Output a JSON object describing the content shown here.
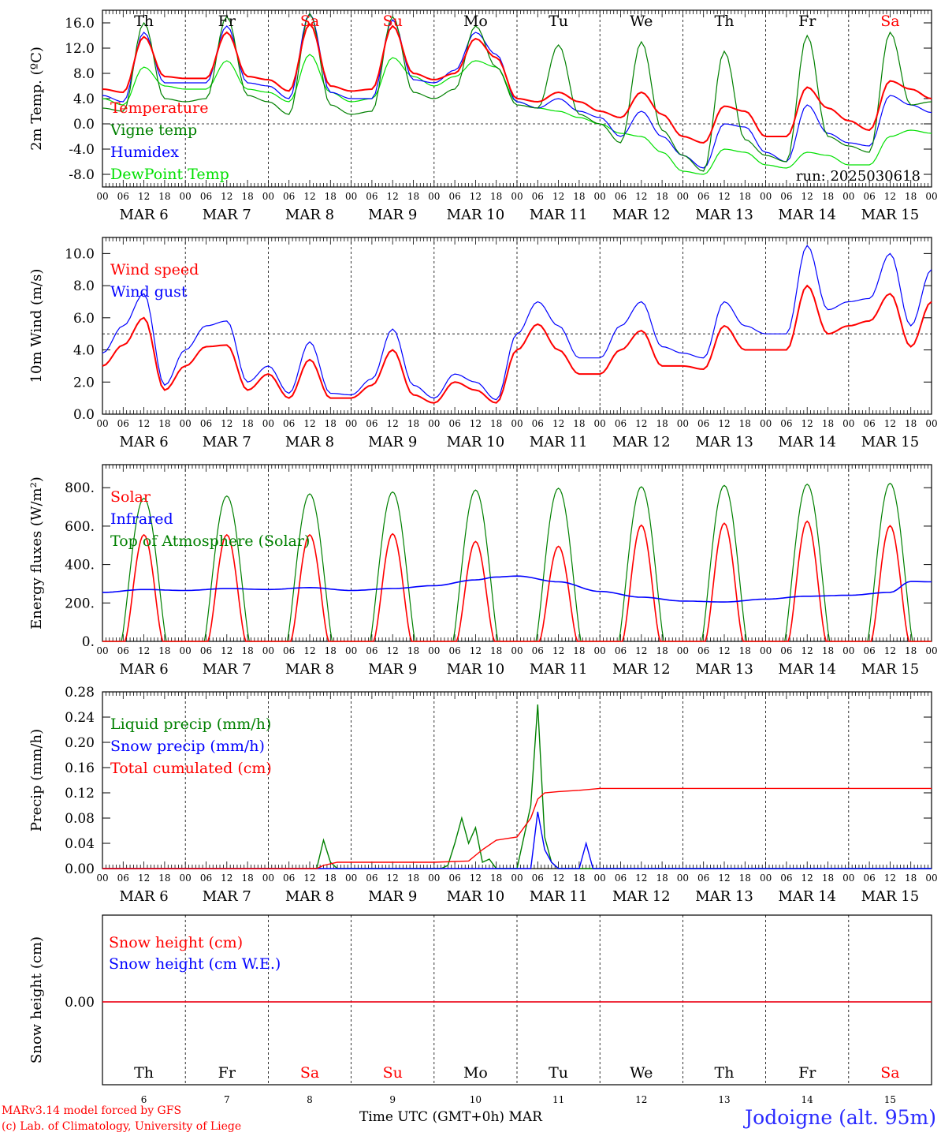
{
  "footer": {
    "model": "MARv3.14 model forced by GFS",
    "lab": "(c) Lab. of Climatology, University of Liege",
    "time_label": "Time UTC (GMT+0h) MAR",
    "station": "Jodoigne (alt. 95m)"
  },
  "colors": {
    "red": "#ff0000",
    "dark_green": "#008000",
    "blue": "#0000ff",
    "light_green": "#00e000",
    "grid": "#000000",
    "weekend": "#ff0000"
  },
  "days": {
    "abbr": [
      "Th",
      "Fr",
      "Sa",
      "Su",
      "Mo",
      "Tu",
      "We",
      "Th",
      "Fr",
      "Sa"
    ],
    "weekend": [
      false,
      false,
      true,
      true,
      false,
      false,
      false,
      false,
      false,
      true
    ],
    "dates": [
      "MAR  6",
      "MAR  7",
      "MAR  8",
      "MAR  9",
      "MAR 10",
      "MAR 11",
      "MAR 12",
      "MAR 13",
      "MAR 14",
      "MAR 15"
    ],
    "numbers": [
      "6",
      "7",
      "8",
      "9",
      "10",
      "11",
      "12",
      "13",
      "14",
      "15"
    ],
    "hour_ticks": [
      "00",
      "06",
      "12",
      "18"
    ],
    "end_tick": "00"
  },
  "chart_data": [
    {
      "type": "line",
      "id": "temp",
      "ylabel": "2m Temp. (ºC)",
      "ylim": [
        -10,
        18
      ],
      "yticks": [
        "16.0",
        "12.0",
        "8.0",
        "4.0",
        "0.0",
        "-4.0",
        "-8.0"
      ],
      "ytick_values": [
        16,
        12,
        8,
        4,
        0,
        -4,
        -8
      ],
      "reference_line": 0,
      "run_label": "run: 2025030618",
      "x": [
        0,
        6,
        12,
        18,
        24,
        30,
        36,
        42,
        48,
        54,
        60,
        66,
        72,
        78,
        84,
        90,
        96,
        102,
        108,
        114,
        120,
        126,
        132,
        138,
        144,
        150,
        156,
        162,
        168,
        174,
        180,
        186,
        192,
        198,
        204,
        210,
        216,
        222,
        228,
        234,
        240
      ],
      "series": [
        {
          "name": "Temperature",
          "color": "#ff0000",
          "values": [
            5.5,
            5.0,
            13.8,
            7.5,
            7.2,
            7.2,
            14.5,
            7.5,
            7.0,
            5.2,
            15.8,
            6.0,
            5.2,
            5.5,
            15.5,
            8.0,
            7.0,
            8.0,
            13.5,
            10.5,
            4.0,
            3.5,
            5.0,
            3.5,
            2.0,
            1.0,
            5.0,
            1.5,
            -2.0,
            -3.0,
            2.8,
            2.0,
            -2.0,
            -2.0,
            5.8,
            2.5,
            0.5,
            -1.0,
            6.8,
            5.5,
            4.0
          ]
        },
        {
          "name": "Vigne temp",
          "color": "#008000",
          "values": [
            2.5,
            2.0,
            16.0,
            4.0,
            3.5,
            4.0,
            17.0,
            4.5,
            3.5,
            1.5,
            17.5,
            3.0,
            1.5,
            2.0,
            17.0,
            5.0,
            4.0,
            5.5,
            15.5,
            9.0,
            3.0,
            2.5,
            12.5,
            1.5,
            0.0,
            -3.0,
            13.0,
            -1.0,
            -5.0,
            -7.5,
            11.5,
            -2.5,
            -5.0,
            -6.0,
            14.0,
            -2.0,
            -3.5,
            -4.5,
            14.5,
            3.0,
            3.5
          ]
        },
        {
          "name": "Humidex",
          "color": "#0000ff",
          "values": [
            4.5,
            3.5,
            14.5,
            6.5,
            6.5,
            6.5,
            15.5,
            6.5,
            6.0,
            4.0,
            17.5,
            5.0,
            4.0,
            4.0,
            16.5,
            7.0,
            6.5,
            8.5,
            14.5,
            11.0,
            3.5,
            2.5,
            4.0,
            2.0,
            1.0,
            -2.0,
            2.0,
            -2.0,
            -5.0,
            -7.0,
            0.0,
            -0.5,
            -4.5,
            -6.0,
            3.0,
            -1.5,
            -3.0,
            -3.5,
            4.5,
            3.0,
            1.8
          ]
        },
        {
          "name": "DewPoint Temp",
          "color": "#00e000",
          "values": [
            4.0,
            3.0,
            9.0,
            6.0,
            5.5,
            5.5,
            10.0,
            5.5,
            5.0,
            3.5,
            11.0,
            5.0,
            3.5,
            4.0,
            10.5,
            7.5,
            6.0,
            7.5,
            10.0,
            9.0,
            3.5,
            2.5,
            2.0,
            1.0,
            0.0,
            -1.5,
            -2.0,
            -4.5,
            -7.5,
            -8.0,
            -4.0,
            -4.5,
            -6.5,
            -7.0,
            -4.5,
            -5.0,
            -6.5,
            -6.5,
            -2.0,
            -1.0,
            -1.5
          ]
        }
      ]
    },
    {
      "type": "line",
      "id": "wind",
      "ylabel": "10m Wind (m/s)",
      "ylim": [
        0,
        11
      ],
      "yticks": [
        "10.0",
        "8.0",
        "6.0",
        "4.0",
        "2.0",
        "0.0"
      ],
      "ytick_values": [
        10,
        8,
        6,
        4,
        2,
        0
      ],
      "reference_line": 5,
      "x": [
        0,
        6,
        12,
        18,
        24,
        30,
        36,
        42,
        48,
        54,
        60,
        66,
        72,
        78,
        84,
        90,
        96,
        102,
        108,
        114,
        120,
        126,
        132,
        138,
        144,
        150,
        156,
        162,
        168,
        174,
        180,
        186,
        192,
        198,
        204,
        210,
        216,
        222,
        228,
        234,
        240
      ],
      "series": [
        {
          "name": "Wind speed",
          "color": "#ff0000",
          "values": [
            3.0,
            4.3,
            6.0,
            1.5,
            3.0,
            4.2,
            4.3,
            1.5,
            2.5,
            1.0,
            3.4,
            1.0,
            1.0,
            1.8,
            4.0,
            1.2,
            0.7,
            2.0,
            1.5,
            0.7,
            4.0,
            5.6,
            4.0,
            2.5,
            2.5,
            4.0,
            5.2,
            3.0,
            3.0,
            2.8,
            5.5,
            4.0,
            4.0,
            4.0,
            8.0,
            5.0,
            5.5,
            5.8,
            7.5,
            4.2,
            7.0
          ]
        },
        {
          "name": "Wind gust",
          "color": "#0000ff",
          "values": [
            3.8,
            5.5,
            7.5,
            1.8,
            4.0,
            5.5,
            5.8,
            2.0,
            3.0,
            1.3,
            4.5,
            1.3,
            1.2,
            2.2,
            5.3,
            1.8,
            1.0,
            2.5,
            2.0,
            0.9,
            5.0,
            7.0,
            5.5,
            3.5,
            3.5,
            5.5,
            7.0,
            4.2,
            3.8,
            3.5,
            7.0,
            5.5,
            5.0,
            5.0,
            10.5,
            6.5,
            7.0,
            7.2,
            10.0,
            5.5,
            9.0
          ]
        }
      ]
    },
    {
      "type": "line",
      "id": "energy",
      "ylabel": "Energy fluxes (W/m²)",
      "ylim": [
        0,
        920
      ],
      "yticks": [
        "800.",
        "600.",
        "400.",
        "200.",
        "0."
      ],
      "ytick_values": [
        800,
        600,
        400,
        200,
        0
      ],
      "series_meta": [
        {
          "name": "Solar",
          "color": "#ff0000"
        },
        {
          "name": "Infrared",
          "color": "#0000ff"
        },
        {
          "name": "Top of Atmosphere (Solar)",
          "color": "#008000"
        }
      ],
      "toa_peaks": [
        745,
        757,
        768,
        778,
        788,
        797,
        805,
        812,
        818,
        823
      ],
      "solar_peaks": [
        555,
        555,
        555,
        560,
        520,
        495,
        605,
        615,
        625,
        602
      ],
      "infrared": {
        "x": [
          0,
          12,
          24,
          36,
          48,
          60,
          72,
          84,
          96,
          108,
          114,
          120,
          132,
          144,
          156,
          168,
          180,
          192,
          204,
          216,
          228,
          234,
          240
        ],
        "values": [
          255,
          270,
          265,
          275,
          270,
          280,
          265,
          275,
          290,
          320,
          335,
          340,
          310,
          260,
          230,
          210,
          205,
          220,
          235,
          240,
          255,
          312,
          310
        ]
      }
    },
    {
      "type": "line",
      "id": "precip",
      "ylabel": "Precip (mm/h)",
      "ylim": [
        0,
        0.28
      ],
      "yticks": [
        "0.28",
        "0.24",
        "0.20",
        "0.16",
        "0.12",
        "0.08",
        "0.04",
        "0.00"
      ],
      "ytick_values": [
        0.28,
        0.24,
        0.2,
        0.16,
        0.12,
        0.08,
        0.04,
        0
      ],
      "series": [
        {
          "name": "Liquid precip (mm/h)",
          "color": "#008000",
          "x": [
            0,
            62,
            64,
            66,
            68,
            98,
            100,
            102,
            104,
            106,
            108,
            110,
            112,
            114,
            120,
            124,
            126,
            128,
            130,
            132,
            240
          ],
          "values": [
            0,
            0,
            0.045,
            0.01,
            0,
            0,
            0.005,
            0.04,
            0.08,
            0.04,
            0.065,
            0.01,
            0.015,
            0,
            0,
            0.1,
            0.26,
            0.05,
            0.01,
            0,
            0
          ]
        },
        {
          "name": "Snow precip (mm/h)",
          "color": "#0000ff",
          "x": [
            0,
            124,
            126,
            128,
            130,
            132,
            138,
            140,
            142,
            240
          ],
          "values": [
            0,
            0,
            0.09,
            0.03,
            0.01,
            0,
            0,
            0.04,
            0,
            0
          ]
        },
        {
          "name": "Total cumulated (cm)",
          "color": "#ff0000",
          "x": [
            0,
            62,
            64,
            68,
            96,
            106,
            110,
            114,
            120,
            124,
            126,
            128,
            132,
            138,
            144,
            150,
            240
          ],
          "values": [
            0,
            0,
            0.005,
            0.01,
            0.01,
            0.012,
            0.03,
            0.045,
            0.05,
            0.08,
            0.11,
            0.12,
            0.122,
            0.124,
            0.127,
            0.127,
            0.127
          ]
        }
      ]
    },
    {
      "type": "line",
      "id": "snow",
      "ylabel": "Snow height (cm)",
      "yticks": [
        "0.00"
      ],
      "ytick_values": [
        0
      ],
      "series": [
        {
          "name": "Snow height (cm)",
          "color": "#ff0000",
          "values": [
            0,
            0
          ]
        },
        {
          "name": "Snow height (cm W.E.)",
          "color": "#0000ff",
          "values": [
            0,
            0
          ]
        }
      ]
    }
  ]
}
